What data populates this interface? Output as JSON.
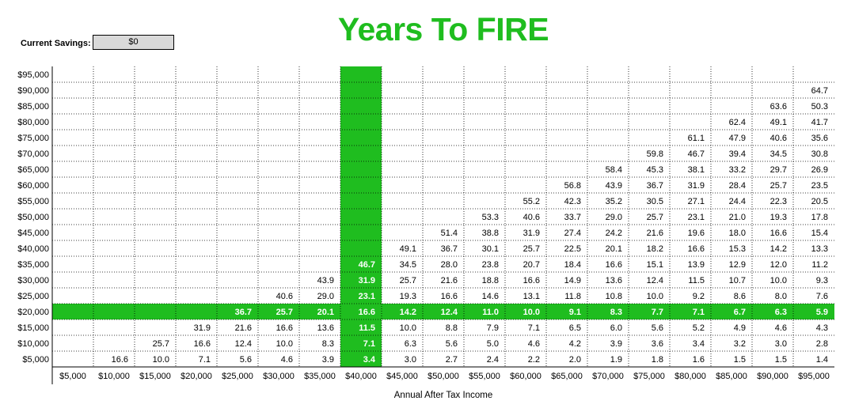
{
  "title": "Years To FIRE",
  "savings": {
    "label": "Current Savings:",
    "value": "$0"
  },
  "chart_data": {
    "type": "heatmap",
    "title": "Years To FIRE",
    "xlabel": "Annual After Tax Income",
    "ylabel": "",
    "x_categories": [
      "$5,000",
      "$10,000",
      "$15,000",
      "$20,000",
      "$25,000",
      "$30,000",
      "$35,000",
      "$40,000",
      "$45,000",
      "$50,000",
      "$55,000",
      "$60,000",
      "$65,000",
      "$70,000",
      "$75,000",
      "$80,000",
      "$85,000",
      "$90,000",
      "$95,000"
    ],
    "y_categories": [
      "$95,000",
      "$90,000",
      "$85,000",
      "$80,000",
      "$75,000",
      "$70,000",
      "$65,000",
      "$60,000",
      "$55,000",
      "$50,000",
      "$45,000",
      "$40,000",
      "$35,000",
      "$30,000",
      "$25,000",
      "$20,000",
      "$15,000",
      "$10,000",
      "$5,000"
    ],
    "highlight_column": "$40,000",
    "highlight_row": "$20,000",
    "highlight_color": "#1fbd1f",
    "rows": [
      [
        null,
        null,
        null,
        null,
        null,
        null,
        null,
        null,
        null,
        null,
        null,
        null,
        null,
        null,
        null,
        null,
        null,
        null,
        null
      ],
      [
        null,
        null,
        null,
        null,
        null,
        null,
        null,
        null,
        null,
        null,
        null,
        null,
        null,
        null,
        null,
        null,
        null,
        null,
        "64.7"
      ],
      [
        null,
        null,
        null,
        null,
        null,
        null,
        null,
        null,
        null,
        null,
        null,
        null,
        null,
        null,
        null,
        null,
        null,
        "63.6",
        "50.3"
      ],
      [
        null,
        null,
        null,
        null,
        null,
        null,
        null,
        null,
        null,
        null,
        null,
        null,
        null,
        null,
        null,
        null,
        "62.4",
        "49.1",
        "41.7"
      ],
      [
        null,
        null,
        null,
        null,
        null,
        null,
        null,
        null,
        null,
        null,
        null,
        null,
        null,
        null,
        null,
        "61.1",
        "47.9",
        "40.6",
        "35.6"
      ],
      [
        null,
        null,
        null,
        null,
        null,
        null,
        null,
        null,
        null,
        null,
        null,
        null,
        null,
        null,
        "59.8",
        "46.7",
        "39.4",
        "34.5",
        "30.8"
      ],
      [
        null,
        null,
        null,
        null,
        null,
        null,
        null,
        null,
        null,
        null,
        null,
        null,
        null,
        "58.4",
        "45.3",
        "38.1",
        "33.2",
        "29.7",
        "26.9"
      ],
      [
        null,
        null,
        null,
        null,
        null,
        null,
        null,
        null,
        null,
        null,
        null,
        null,
        "56.8",
        "43.9",
        "36.7",
        "31.9",
        "28.4",
        "25.7",
        "23.5"
      ],
      [
        null,
        null,
        null,
        null,
        null,
        null,
        null,
        null,
        null,
        null,
        null,
        "55.2",
        "42.3",
        "35.2",
        "30.5",
        "27.1",
        "24.4",
        "22.3",
        "20.5"
      ],
      [
        null,
        null,
        null,
        null,
        null,
        null,
        null,
        null,
        null,
        null,
        "53.3",
        "40.6",
        "33.7",
        "29.0",
        "25.7",
        "23.1",
        "21.0",
        "19.3",
        "17.8"
      ],
      [
        null,
        null,
        null,
        null,
        null,
        null,
        null,
        null,
        null,
        "51.4",
        "38.8",
        "31.9",
        "27.4",
        "24.2",
        "21.6",
        "19.6",
        "18.0",
        "16.6",
        "15.4"
      ],
      [
        null,
        null,
        null,
        null,
        null,
        null,
        null,
        null,
        "49.1",
        "36.7",
        "30.1",
        "25.7",
        "22.5",
        "20.1",
        "18.2",
        "16.6",
        "15.3",
        "14.2",
        "13.3"
      ],
      [
        null,
        null,
        null,
        null,
        null,
        null,
        null,
        "46.7",
        "34.5",
        "28.0",
        "23.8",
        "20.7",
        "18.4",
        "16.6",
        "15.1",
        "13.9",
        "12.9",
        "12.0",
        "11.2"
      ],
      [
        null,
        null,
        null,
        null,
        null,
        null,
        "43.9",
        "31.9",
        "25.7",
        "21.6",
        "18.8",
        "16.6",
        "14.9",
        "13.6",
        "12.4",
        "11.5",
        "10.7",
        "10.0",
        "9.3"
      ],
      [
        null,
        null,
        null,
        null,
        null,
        "40.6",
        "29.0",
        "23.1",
        "19.3",
        "16.6",
        "14.6",
        "13.1",
        "11.8",
        "10.8",
        "10.0",
        "9.2",
        "8.6",
        "8.0",
        "7.6"
      ],
      [
        null,
        null,
        null,
        null,
        "36.7",
        "25.7",
        "20.1",
        "16.6",
        "14.2",
        "12.4",
        "11.0",
        "10.0",
        "9.1",
        "8.3",
        "7.7",
        "7.1",
        "6.7",
        "6.3",
        "5.9"
      ],
      [
        null,
        null,
        null,
        "31.9",
        "21.6",
        "16.6",
        "13.6",
        "11.5",
        "10.0",
        "8.8",
        "7.9",
        "7.1",
        "6.5",
        "6.0",
        "5.6",
        "5.2",
        "4.9",
        "4.6",
        "4.3"
      ],
      [
        null,
        null,
        "25.7",
        "16.6",
        "12.4",
        "10.0",
        "8.3",
        "7.1",
        "6.3",
        "5.6",
        "5.0",
        "4.6",
        "4.2",
        "3.9",
        "3.6",
        "3.4",
        "3.2",
        "3.0",
        "2.8"
      ],
      [
        null,
        "16.6",
        "10.0",
        "7.1",
        "5.6",
        "4.6",
        "3.9",
        "3.4",
        "3.0",
        "2.7",
        "2.4",
        "2.2",
        "2.0",
        "1.9",
        "1.8",
        "1.6",
        "1.5",
        "1.5",
        "1.4"
      ]
    ]
  }
}
